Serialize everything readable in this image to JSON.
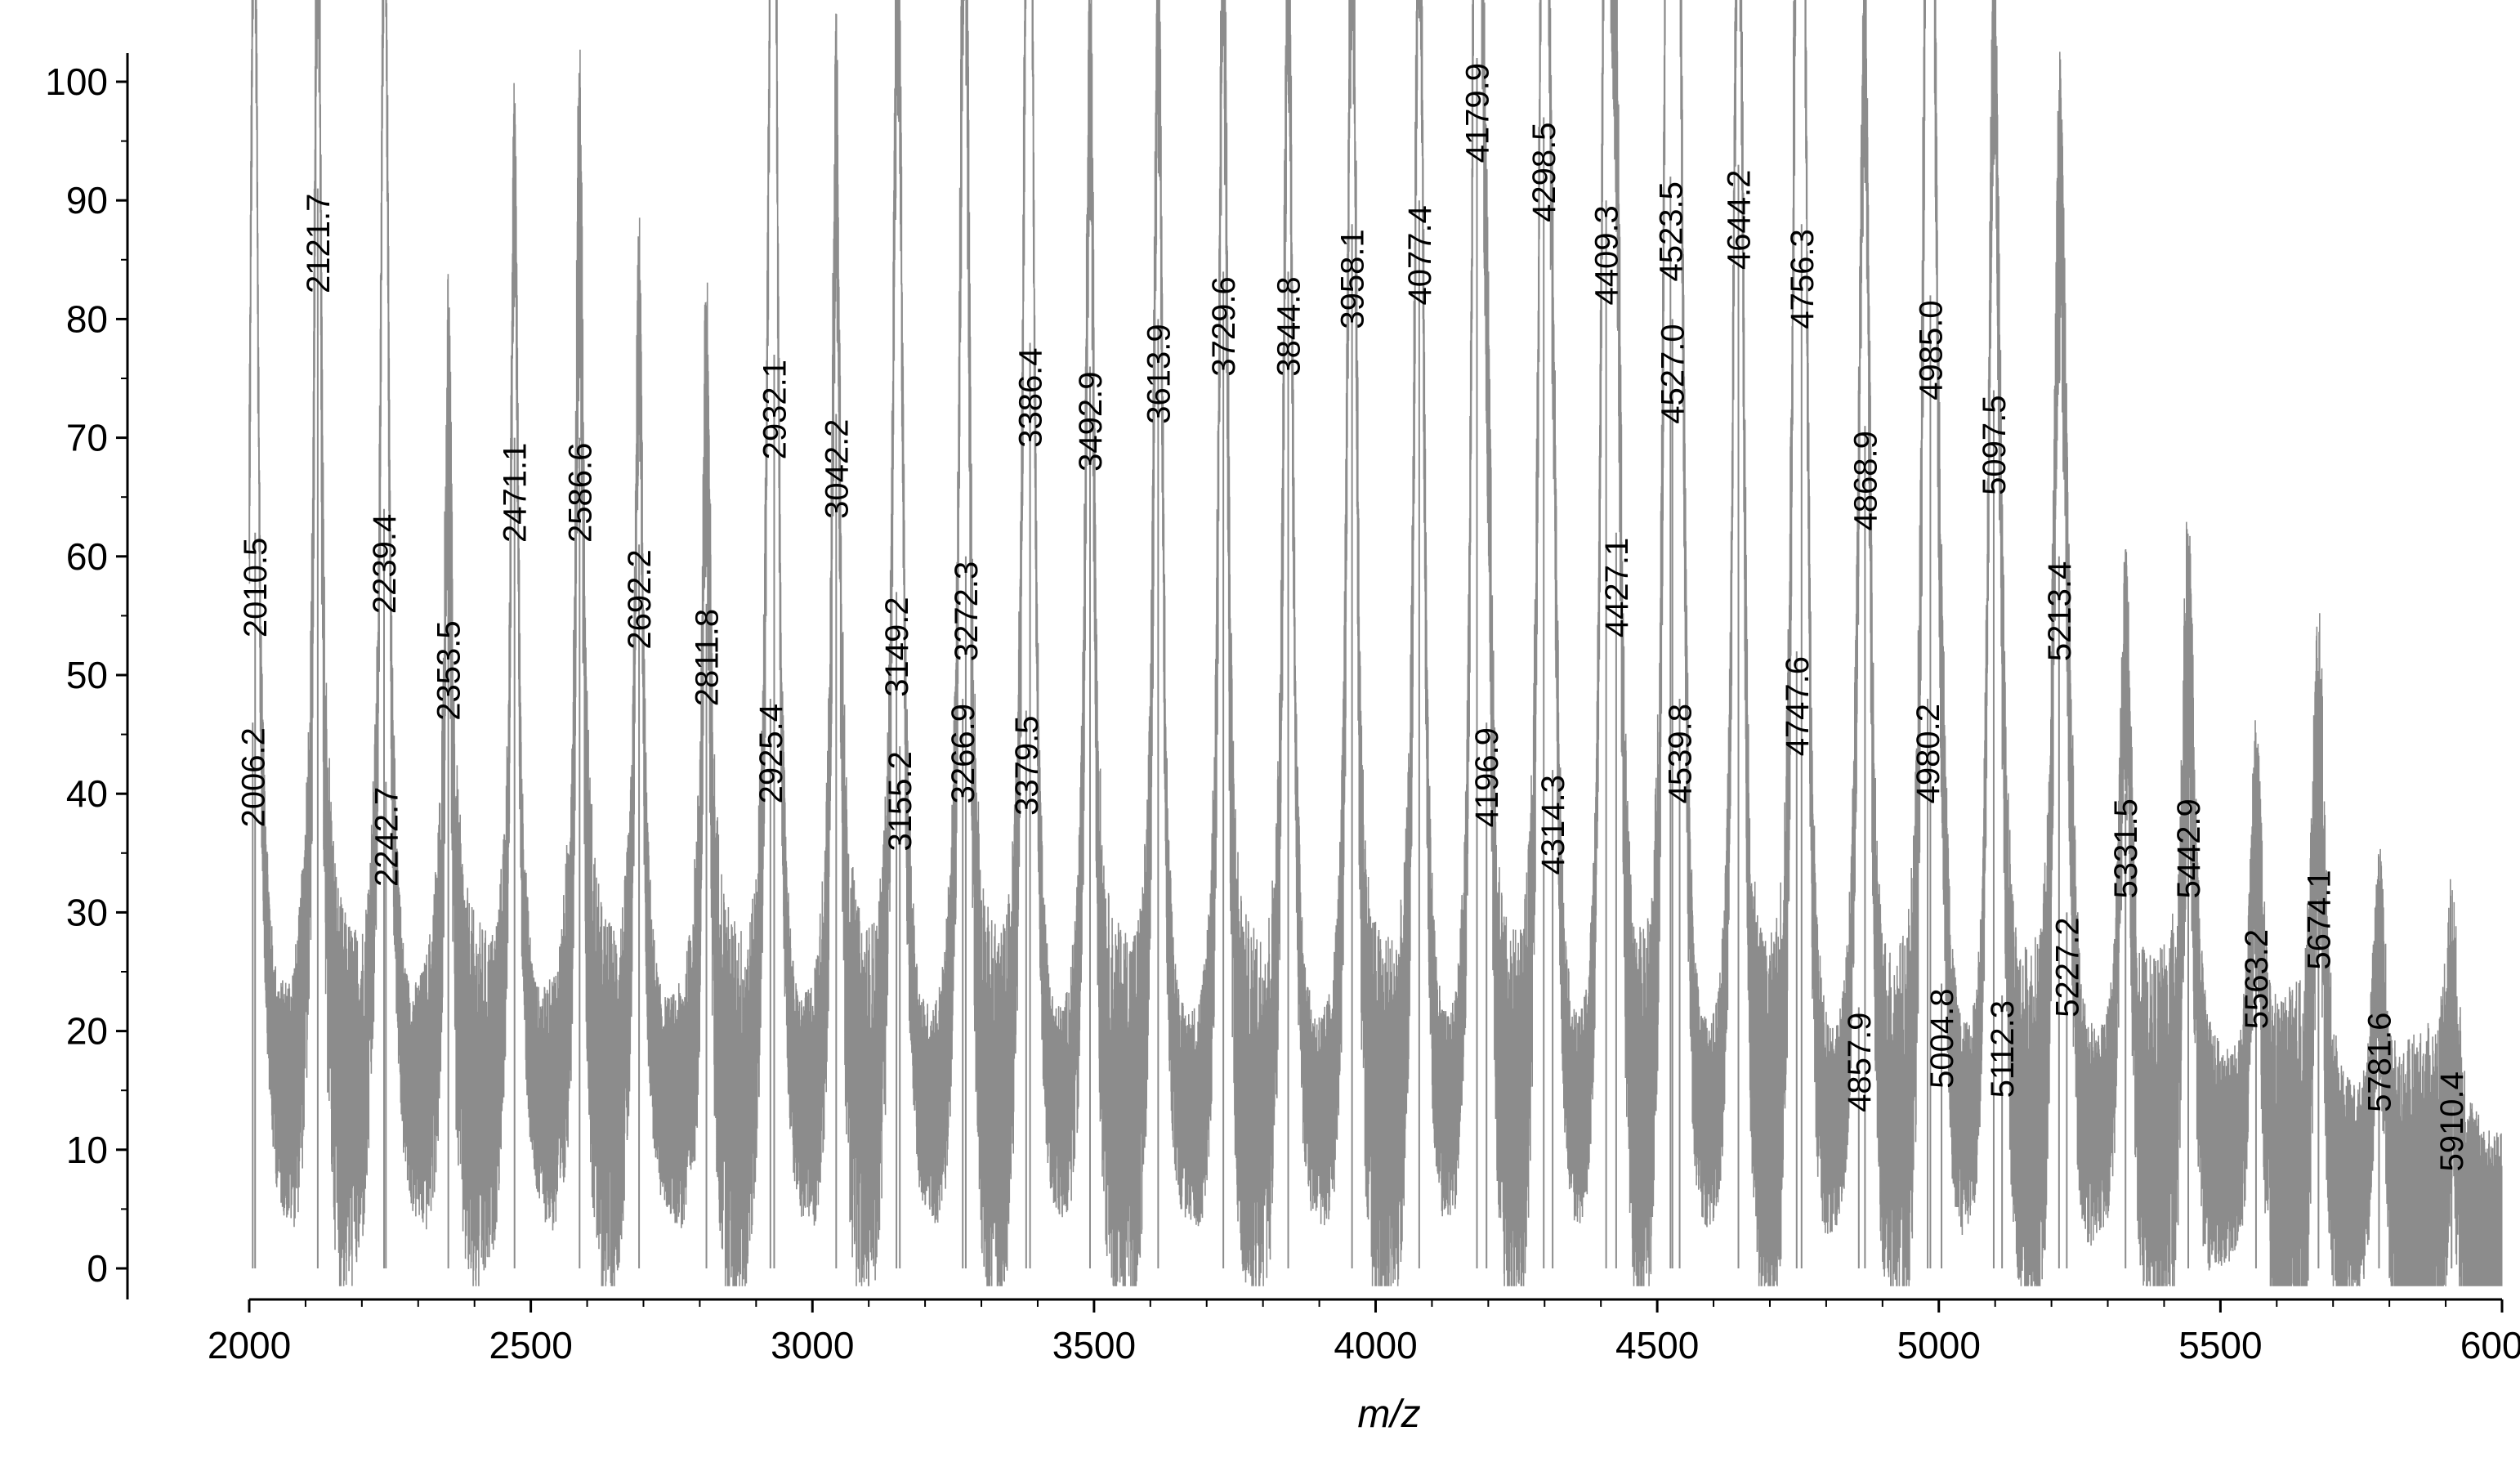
{
  "chart_data": {
    "type": "line",
    "title": "",
    "xlabel": "m/z",
    "ylabel": "",
    "xlim": [
      2000,
      6000
    ],
    "ylim": [
      0,
      100
    ],
    "x_ticks": [
      2000,
      2500,
      3000,
      3500,
      4000,
      4500,
      5000,
      5500,
      6000
    ],
    "y_ticks": [
      0,
      10,
      20,
      30,
      40,
      50,
      60,
      70,
      80,
      90,
      100
    ],
    "grid": false,
    "line_color": "#8c8c8c",
    "series": [
      {
        "peaks": [
          {
            "x": 2006.2,
            "y": 46,
            "label": "2006.2"
          },
          {
            "x": 2010.5,
            "y": 62,
            "label": "2010.5"
          },
          {
            "x": 2121.7,
            "y": 91,
            "label": "2121.7"
          },
          {
            "x": 2239.4,
            "y": 64,
            "label": "2239.4"
          },
          {
            "x": 2242.7,
            "y": 41,
            "label": "2242.7"
          },
          {
            "x": 2353.5,
            "y": 55,
            "label": "2353.5"
          },
          {
            "x": 2471.1,
            "y": 70,
            "label": "2471.1"
          },
          {
            "x": 2586.6,
            "y": 70,
            "label": "2586.6"
          },
          {
            "x": 2692.2,
            "y": 61,
            "label": "2692.2"
          },
          {
            "x": 2811.8,
            "y": 56,
            "label": "2811.8"
          },
          {
            "x": 2925.4,
            "y": 48,
            "label": "2925.4"
          },
          {
            "x": 2932.1,
            "y": 77,
            "label": "2932.1"
          },
          {
            "x": 3042.2,
            "y": 72,
            "label": "3042.2"
          },
          {
            "x": 3149.2,
            "y": 57,
            "label": "3149.2"
          },
          {
            "x": 3155.2,
            "y": 44,
            "label": "3155.2"
          },
          {
            "x": 3266.9,
            "y": 48,
            "label": "3266.9"
          },
          {
            "x": 3272.3,
            "y": 60,
            "label": "3272.3"
          },
          {
            "x": 3379.5,
            "y": 47,
            "label": "3379.5"
          },
          {
            "x": 3386.4,
            "y": 78,
            "label": "3386.4"
          },
          {
            "x": 3492.9,
            "y": 76,
            "label": "3492.9"
          },
          {
            "x": 3613.9,
            "y": 80,
            "label": "3613.9"
          },
          {
            "x": 3729.6,
            "y": 84,
            "label": "3729.6"
          },
          {
            "x": 3844.8,
            "y": 84,
            "label": "3844.8"
          },
          {
            "x": 3958.1,
            "y": 88,
            "label": "3958.1"
          },
          {
            "x": 4077.4,
            "y": 90,
            "label": "4077.4"
          },
          {
            "x": 4179.9,
            "y": 102,
            "label": "4179.9"
          },
          {
            "x": 4196.9,
            "y": 46,
            "label": "4196.9"
          },
          {
            "x": 4298.5,
            "y": 97,
            "label": "4298.5"
          },
          {
            "x": 4314.3,
            "y": 42,
            "label": "4314.3"
          },
          {
            "x": 4409.3,
            "y": 90,
            "label": "4409.3"
          },
          {
            "x": 4427.1,
            "y": 62,
            "label": "4427.1"
          },
          {
            "x": 4523.5,
            "y": 92,
            "label": "4523.5"
          },
          {
            "x": 4527.0,
            "y": 80,
            "label": "4527.0"
          },
          {
            "x": 4539.8,
            "y": 48,
            "label": "4539.8"
          },
          {
            "x": 4644.2,
            "y": 93,
            "label": "4644.2"
          },
          {
            "x": 4747.6,
            "y": 52,
            "label": "4747.6"
          },
          {
            "x": 4756.3,
            "y": 88,
            "label": "4756.3"
          },
          {
            "x": 4857.9,
            "y": 22,
            "label": "4857.9"
          },
          {
            "x": 4868.9,
            "y": 71,
            "label": "4868.9"
          },
          {
            "x": 4980.2,
            "y": 48,
            "label": "4980.2"
          },
          {
            "x": 4985.0,
            "y": 82,
            "label": "4985.0"
          },
          {
            "x": 5004.8,
            "y": 24,
            "label": "5004.8"
          },
          {
            "x": 5097.5,
            "y": 74,
            "label": "5097.5"
          },
          {
            "x": 5112.3,
            "y": 23,
            "label": "5112.3"
          },
          {
            "x": 5213.4,
            "y": 60,
            "label": "5213.4"
          },
          {
            "x": 5227.2,
            "y": 30,
            "label": "5227.2"
          },
          {
            "x": 5331.5,
            "y": 40,
            "label": "5331.5"
          },
          {
            "x": 5442.9,
            "y": 40,
            "label": "5442.9"
          },
          {
            "x": 5563.2,
            "y": 29,
            "label": "5563.2"
          },
          {
            "x": 5674.1,
            "y": 34,
            "label": "5674.1"
          },
          {
            "x": 5781.6,
            "y": 22,
            "label": "5781.6"
          },
          {
            "x": 5910.4,
            "y": 17,
            "label": "5910.4"
          }
        ]
      }
    ]
  }
}
